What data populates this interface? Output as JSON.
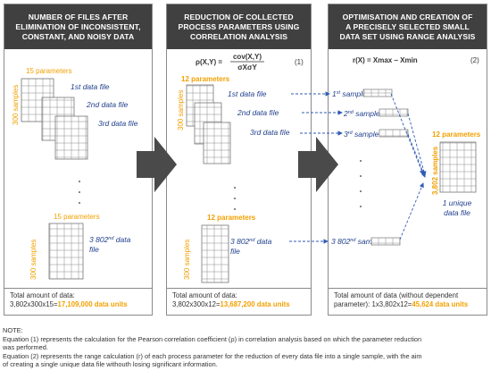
{
  "panels": [
    {
      "title_lines": [
        "NUMBER OF FILES AFTER",
        "ELIMINATION OF INCONSISTENT,",
        "CONSTANT, AND NOISY DATA"
      ],
      "total_lines": [
        "Total amount of data:"
      ],
      "total_formula": "3,802x300x15=",
      "total_value": "17,109,000 data units",
      "params_label": "15  parameters",
      "samples_label": "300 samples",
      "files": [
        "1st data file",
        "2nd data file",
        "3rd data file",
        "3 802nd data file"
      ]
    },
    {
      "title_lines": [
        "REDUCTION OF COLLECTED",
        "PROCESS PARAMETERS USING",
        "CORRELATION ANALYSIS"
      ],
      "total_lines": [
        "Total amount of data:"
      ],
      "total_formula": "3,802x300x12=",
      "total_value": "13,687,200 data units",
      "params_label": "12  parameters",
      "samples_label": "300 samples",
      "equation_lhs": "ρ(X,Y) =",
      "equation_num": "cov(X,Y)",
      "equation_den": "σXσY",
      "equation_no": "(1)",
      "files": [
        "1st data file",
        "2nd data file",
        "3rd data file",
        "3 802nd data file"
      ]
    },
    {
      "title_lines": [
        "OPTIMISATION AND CREATION OF",
        "A PRECISELY SELECTED SMALL",
        "DATA SET USING RANGE ANALYSIS"
      ],
      "total_lines": [
        "Total amount of data (without dependent",
        "parameter):"
      ],
      "total_formula": "1x3,802x12=",
      "total_value": "45,624 data units",
      "equation": "r(X) = Xmax – Xmin",
      "equation_no": "(2)",
      "samples": [
        "1st sample",
        "2nd sample",
        "3rd sample",
        "3 802nd sample"
      ],
      "params_label": "12  parameters",
      "samples_label": "3,802 samples",
      "unique_label": [
        "1 unique",
        "data file"
      ]
    }
  ],
  "note": {
    "heading": "NOTE:",
    "lines": [
      "Equation (1) represents the calculation for the Pearson correlation coefficient (ρ) in correlation analysis based on which the parameter reduction",
      "was performed.",
      "Equation (2) represents the range calculation (r) of each process parameter for the reduction of every data file into a single sample, with the aim",
      "of creating a single unique data file withouth losing significant information."
    ]
  },
  "colors": {
    "title_bg": "#404040",
    "accent": "#f2a000",
    "label_blue": "#1f3f8c",
    "arrow": "#4a4a4a",
    "dash_arrow": "#2f5bb5"
  }
}
